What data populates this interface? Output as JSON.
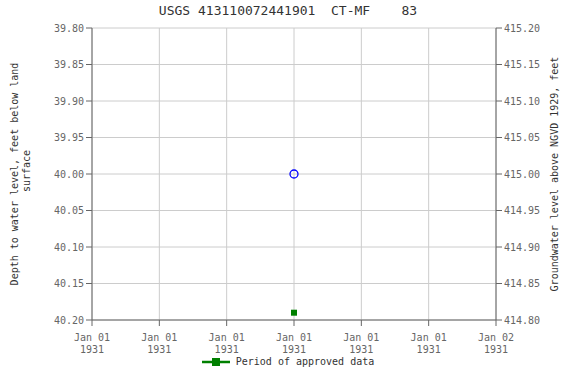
{
  "chart_data": {
    "type": "scatter",
    "title": "USGS 413110072441901  CT-MF    83",
    "ylabel": "Depth to water level, feet below land\n surface",
    "y2label": "Groundwater level above NGVD 1929, feet",
    "categories": [
      "Jan 01\n1931",
      "Jan 01\n1931",
      "Jan 01\n1931",
      "Jan 01\n1931",
      "Jan 01\n1931",
      "Jan 01\n1931",
      "Jan 02\n1931"
    ],
    "series": [
      {
        "color": "blue",
        "marker": "open_circle",
        "values": [
          null,
          null,
          null,
          40.0,
          null,
          null,
          null
        ]
      },
      {
        "name": "Period of approved data",
        "color": "#008000",
        "marker": "square",
        "values": [
          null,
          null,
          null,
          40.19,
          null,
          null,
          null
        ]
      }
    ],
    "ylim": [
      40.2,
      39.8
    ],
    "yticks": [
      {
        "value": 39.8,
        "label": "39.80"
      },
      {
        "value": 39.85,
        "label": "39.85"
      },
      {
        "value": 39.9,
        "label": "39.90"
      },
      {
        "value": 39.95,
        "label": "39.95"
      },
      {
        "value": 40.0,
        "label": "40.00"
      },
      {
        "value": 40.05,
        "label": "40.05"
      },
      {
        "value": 40.1,
        "label": "40.10"
      },
      {
        "value": 40.15,
        "label": "40.15"
      },
      {
        "value": 40.2,
        "label": "40.20"
      }
    ],
    "y2lim": [
      414.8,
      415.2
    ],
    "y2ticks": [
      {
        "value": 414.8,
        "label": "414.80"
      },
      {
        "value": 414.85,
        "label": "414.85"
      },
      {
        "value": 414.9,
        "label": "414.90"
      },
      {
        "value": 414.95,
        "label": "414.95"
      },
      {
        "value": 415.0,
        "label": "415.00"
      },
      {
        "value": 415.05,
        "label": "415.05"
      },
      {
        "value": 415.1,
        "label": "415.10"
      },
      {
        "value": 415.15,
        "label": "415.15"
      },
      {
        "value": 415.2,
        "label": "415.20"
      }
    ],
    "grid": true,
    "legend": "bottom"
  }
}
